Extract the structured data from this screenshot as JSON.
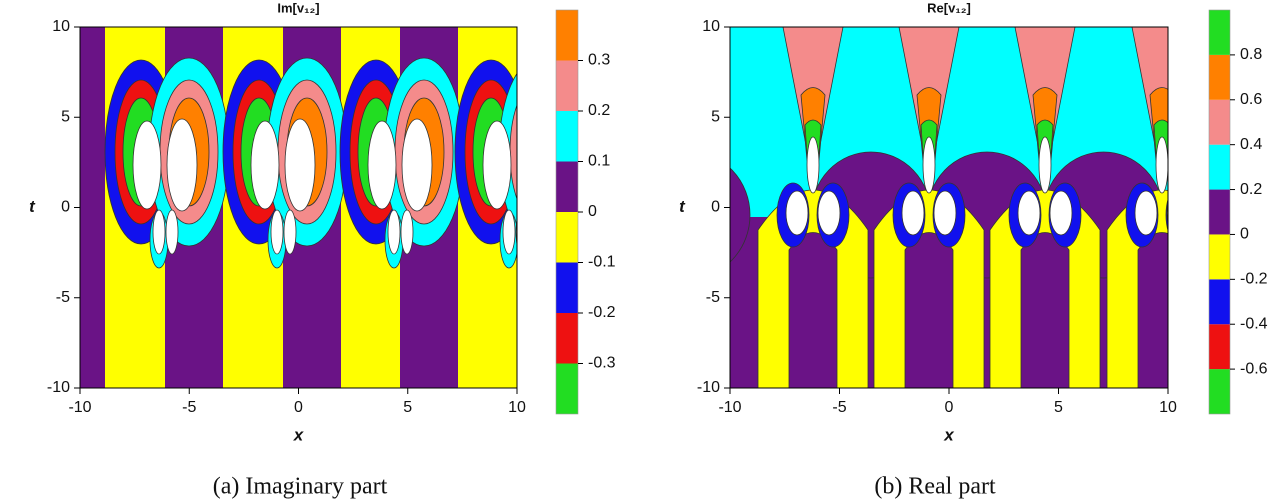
{
  "chart_data": [
    {
      "type": "contour",
      "title": "Im[v₁₂]",
      "x_label": "x",
      "y_label": "t",
      "caption": "(a)  Imaginary part",
      "xlim": [
        -10,
        10
      ],
      "xticks": [
        -10,
        -5,
        0,
        5,
        10
      ],
      "ylim": [
        -10,
        10
      ],
      "yticks": [
        -10,
        -5,
        0,
        5,
        10
      ],
      "levels": [
        -0.4,
        -0.3,
        -0.2,
        -0.1,
        0,
        0.1,
        0.2,
        0.3,
        0.4
      ],
      "colors": [
        "#22dd22",
        "#ee1111",
        "#1111ee",
        "#ffff00",
        "#6a1386",
        "#00ffff",
        "#f48b8b",
        "#ff8000"
      ],
      "cbar_ticks": [
        -0.3,
        -0.2,
        -0.1,
        0,
        0.1,
        0.2,
        0.3
      ]
    },
    {
      "type": "contour",
      "title": "Re[v₁₂]",
      "x_label": "x",
      "y_label": "t",
      "caption": "(b)  Real part",
      "xlim": [
        -10,
        10
      ],
      "xticks": [
        -10,
        -5,
        0,
        5,
        10
      ],
      "ylim": [
        -10,
        10
      ],
      "yticks": [
        -10,
        -5,
        0,
        5,
        10
      ],
      "levels": [
        -0.8,
        -0.6,
        -0.4,
        -0.2,
        0,
        0.2,
        0.4,
        0.6,
        0.8,
        1.0
      ],
      "colors": [
        "#22dd22",
        "#ee1111",
        "#1111ee",
        "#ffff00",
        "#6a1386",
        "#00ffff",
        "#f48b8b",
        "#ff8000",
        "#22dd22"
      ],
      "cbar_ticks": [
        -0.6,
        -0.4,
        -0.2,
        0,
        0.2,
        0.4,
        0.6,
        0.8
      ]
    }
  ]
}
